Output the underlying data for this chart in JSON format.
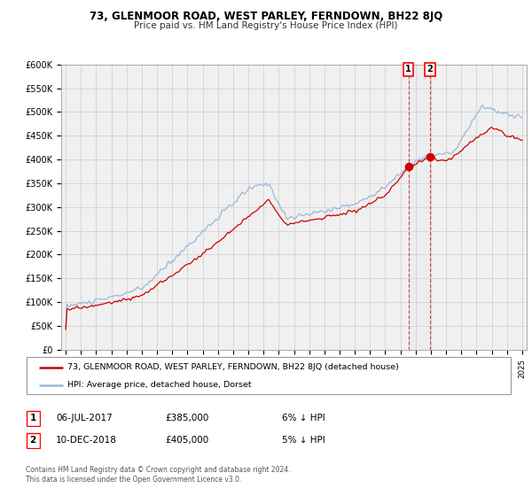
{
  "title": "73, GLENMOOR ROAD, WEST PARLEY, FERNDOWN, BH22 8JQ",
  "subtitle": "Price paid vs. HM Land Registry's House Price Index (HPI)",
  "ylim": [
    0,
    600000
  ],
  "yticks": [
    0,
    50000,
    100000,
    150000,
    200000,
    250000,
    300000,
    350000,
    400000,
    450000,
    500000,
    550000,
    600000
  ],
  "xlim_start": 1994.7,
  "xlim_end": 2025.3,
  "hpi_color": "#9ab8d8",
  "price_color": "#cc0000",
  "marker_color": "#cc0000",
  "grid_color": "#cccccc",
  "bg_color": "#f0f0f0",
  "legend_label_price": "73, GLENMOOR ROAD, WEST PARLEY, FERNDOWN, BH22 8JQ (detached house)",
  "legend_label_hpi": "HPI: Average price, detached house, Dorset",
  "annotation1_label": "1",
  "annotation1_date": "06-JUL-2017",
  "annotation1_price": "£385,000",
  "annotation1_note": "6% ↓ HPI",
  "annotation1_year": 2017.52,
  "annotation1_value": 385000,
  "annotation2_label": "2",
  "annotation2_date": "10-DEC-2018",
  "annotation2_price": "£405,000",
  "annotation2_note": "5% ↓ HPI",
  "annotation2_year": 2018.94,
  "annotation2_value": 405000,
  "footer1": "Contains HM Land Registry data © Crown copyright and database right 2024.",
  "footer2": "This data is licensed under the Open Government Licence v3.0."
}
